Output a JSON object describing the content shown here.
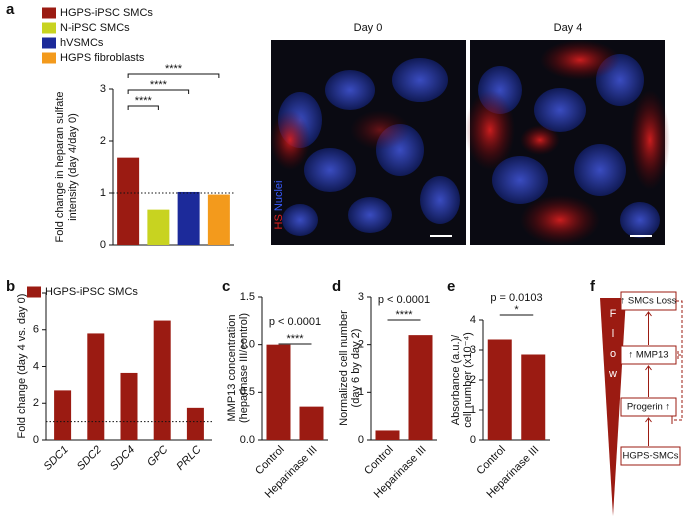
{
  "panels": [
    "a",
    "b",
    "c",
    "d",
    "e",
    "f"
  ],
  "images": {
    "titles": [
      "Day 0",
      "Day 4"
    ],
    "stain": "HS",
    "nuclei": "Nuclei"
  },
  "chart_data": [
    {
      "type": "bar",
      "ylabel": [
        "Fold change in heparan sulfate",
        "intensity (day 4/day 0)"
      ],
      "categories": [
        "HGPS-iPSC SMCs",
        "N-iPSC SMCs",
        "hVSMCs",
        "HGPS fibroblasts"
      ],
      "colors": [
        "#9b1b12",
        "#c8d320",
        "#1c2a9a",
        "#f39a1c"
      ],
      "values": [
        1.68,
        0.68,
        1.02,
        0.97
      ],
      "ylim": [
        0,
        3
      ],
      "yticks": [
        0,
        1,
        2,
        3
      ],
      "reference_line": 1,
      "annotations": [
        "****",
        "****",
        "****"
      ],
      "legend": true
    },
    {
      "type": "bar",
      "ylabel": "Fold change (day 4 vs. day 0)",
      "categories": [
        "SDC1",
        "SDC2",
        "SDC4",
        "GPC",
        "PRLC"
      ],
      "italic_categories": true,
      "series": [
        {
          "name": "HGPS-iPSC SMCs",
          "color": "#9b1b12",
          "values": [
            2.7,
            5.8,
            3.65,
            6.5,
            1.75
          ]
        }
      ],
      "ylim": [
        0,
        8
      ],
      "yticks": [
        0,
        2,
        4,
        6,
        8
      ],
      "reference_line": 1,
      "legend": true
    },
    {
      "type": "bar",
      "ylabel": [
        "MMP13 concentration",
        "(heparinase III/control)"
      ],
      "categories": [
        "Control",
        "Heparinase III"
      ],
      "color": "#9b1b12",
      "values": [
        1.0,
        0.35
      ],
      "ylim": [
        0,
        1.5
      ],
      "yticks": [
        {
          "value": 0,
          "label": "0.0"
        },
        0.5,
        {
          "value": 1,
          "label": "1.0"
        },
        1.5
      ],
      "annotations": [
        "p < 0.0001",
        "****"
      ]
    },
    {
      "type": "bar",
      "ylabel": [
        "Normalized cell number",
        "(day 6 by day 2)"
      ],
      "categories": [
        "Control",
        "Heparinase III"
      ],
      "color": "#9b1b12",
      "values": [
        0.2,
        2.2
      ],
      "ylim": [
        0,
        3
      ],
      "yticks": [
        0,
        1,
        2,
        3
      ],
      "annotations": [
        "p < 0.0001",
        "****"
      ]
    },
    {
      "type": "bar",
      "ylabel": [
        "Absorbance (a.u.)/",
        "cell number (x10⁻⁴)"
      ],
      "categories": [
        "Control",
        "Heparinase III"
      ],
      "color": "#9b1b12",
      "values": [
        3.35,
        2.85
      ],
      "ylim": [
        0,
        4
      ],
      "yticks": [
        0,
        1,
        2,
        3,
        4
      ],
      "annotations": [
        "p = 0.0103",
        "*"
      ]
    }
  ],
  "diagram": {
    "flow": [
      "F",
      "l",
      "o",
      "w"
    ],
    "boxes": [
      "↑ SMCs Loss",
      "↑ MMP13",
      "Progerin ↑",
      "HGPS-SMCs"
    ]
  }
}
